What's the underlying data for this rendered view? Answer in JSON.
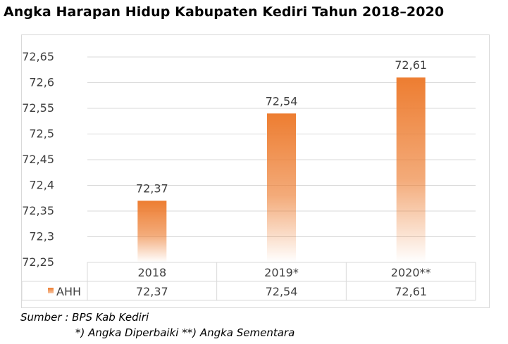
{
  "title": "Angka Harapan Hidup Kabupaten Kediri Tahun 2018–2020",
  "source": "Sumber : BPS Kab Kediri",
  "footnote": "*) Angka Diperbaiki **) Angka Sementara",
  "colors": {
    "bar": "#ed7d31",
    "grid": "#d9d9d9",
    "text": "#404040"
  },
  "chart_data": {
    "type": "bar",
    "title": "Angka Harapan Hidup Kabupaten Kediri Tahun 2018–2020",
    "xlabel": "",
    "ylabel": "",
    "categories": [
      "2018",
      "2019*",
      "2020**"
    ],
    "series": [
      {
        "name": "AHH",
        "values": [
          72.37,
          72.54,
          72.61
        ],
        "color": "#ed7d31"
      }
    ],
    "data_labels": [
      "72,37",
      "72,54",
      "72,61"
    ],
    "ylim": [
      72.25,
      72.65
    ],
    "yticks": [
      72.25,
      72.3,
      72.35,
      72.4,
      72.45,
      72.5,
      72.55,
      72.6,
      72.65
    ],
    "ytick_labels": [
      "72,25",
      "72,3",
      "72,35",
      "72,4",
      "72,45",
      "72,5",
      "72,55",
      "72,6",
      "72,65"
    ],
    "grid": true,
    "data_table": {
      "row_label": "AHH",
      "values": [
        "72,37",
        "72,54",
        "72,61"
      ]
    }
  }
}
